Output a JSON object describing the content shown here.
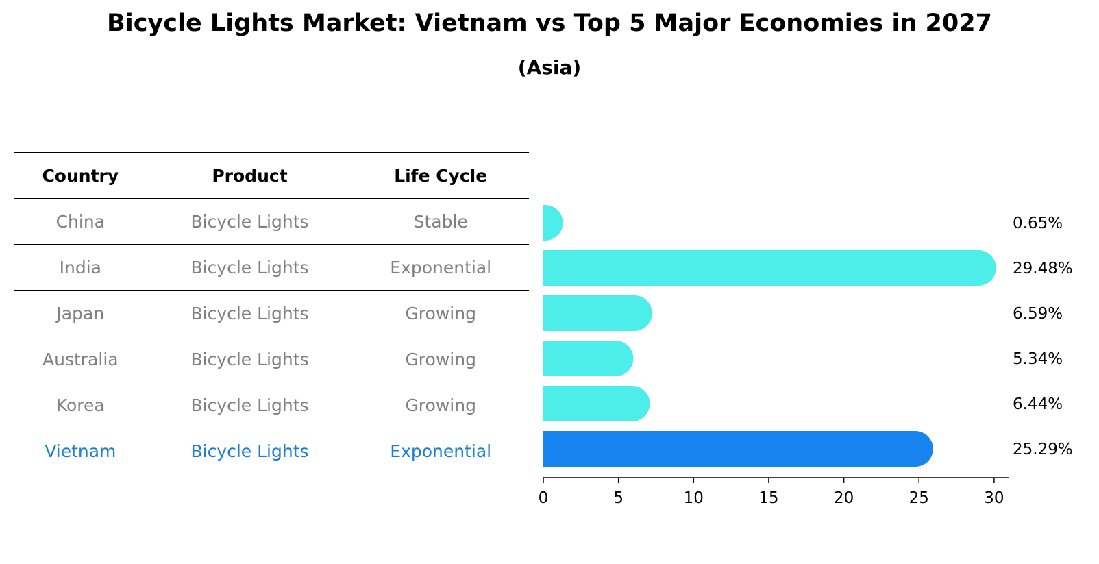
{
  "title": "Bicycle Lights Market: Vietnam vs Top 5 Major Economies in 2027",
  "subtitle": "(Asia)",
  "table": {
    "headers": [
      "Country",
      "Product",
      "Life Cycle"
    ],
    "rows": [
      {
        "country": "China",
        "product": "Bicycle Lights",
        "life_cycle": "Stable"
      },
      {
        "country": "India",
        "product": "Bicycle Lights",
        "life_cycle": "Exponential"
      },
      {
        "country": "Japan",
        "product": "Bicycle Lights",
        "life_cycle": "Growing"
      },
      {
        "country": "Australia",
        "product": "Bicycle Lights",
        "life_cycle": "Growing"
      },
      {
        "country": "Korea",
        "product": "Bicycle Lights",
        "life_cycle": "Growing"
      },
      {
        "country": "Vietnam",
        "product": "Bicycle Lights",
        "life_cycle": "Exponential"
      }
    ]
  },
  "colors": {
    "default_bar": "#4DEDEA",
    "highlight_bar": "#1884F0",
    "highlight_text": "#1a7fd4",
    "muted_text": "#808080"
  },
  "chart_data": {
    "type": "bar",
    "orientation": "horizontal",
    "categories": [
      "China",
      "India",
      "Japan",
      "Australia",
      "Korea",
      "Vietnam"
    ],
    "values": [
      0.65,
      29.48,
      6.59,
      5.34,
      6.44,
      25.29
    ],
    "value_labels": [
      "0.65%",
      "29.48%",
      "6.59%",
      "5.34%",
      "6.44%",
      "25.29%"
    ],
    "highlight": "Vietnam",
    "xlim": [
      0,
      31
    ],
    "xticks": [
      0,
      5,
      10,
      15,
      20,
      25,
      30
    ],
    "grid": false,
    "legend": "none"
  }
}
